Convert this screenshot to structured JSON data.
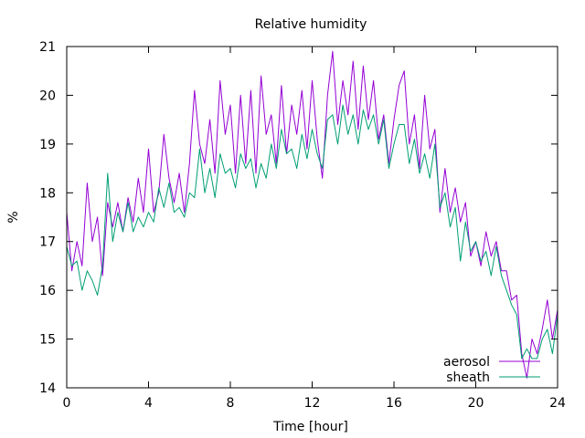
{
  "chart_data": {
    "type": "line",
    "title": "Relative humidity",
    "xlabel": "Time [hour]",
    "ylabel": "%",
    "xlim": [
      0,
      24
    ],
    "ylim": [
      14,
      21
    ],
    "xticks": [
      0,
      4,
      8,
      12,
      16,
      20,
      24
    ],
    "yticks": [
      14,
      15,
      16,
      17,
      18,
      19,
      20,
      21
    ],
    "grid": false,
    "legend_position": "bottom-right",
    "series": [
      {
        "name": "aerosol",
        "color": "#9400d3",
        "x": [
          0,
          0.25,
          0.5,
          0.75,
          1,
          1.25,
          1.5,
          1.75,
          2,
          2.25,
          2.5,
          2.75,
          3,
          3.25,
          3.5,
          3.75,
          4,
          4.25,
          4.5,
          4.75,
          5,
          5.25,
          5.5,
          5.75,
          6,
          6.25,
          6.5,
          6.75,
          7,
          7.25,
          7.5,
          7.75,
          8,
          8.25,
          8.5,
          8.75,
          9,
          9.25,
          9.5,
          9.75,
          10,
          10.25,
          10.5,
          10.75,
          11,
          11.25,
          11.5,
          11.75,
          12,
          12.25,
          12.5,
          12.75,
          13,
          13.25,
          13.5,
          13.75,
          14,
          14.25,
          14.5,
          14.75,
          15,
          15.25,
          15.5,
          15.75,
          16,
          16.25,
          16.5,
          16.75,
          17,
          17.25,
          17.5,
          17.75,
          18,
          18.25,
          18.5,
          18.75,
          19,
          19.25,
          19.5,
          19.75,
          20,
          20.25,
          20.5,
          20.75,
          21,
          21.25,
          21.5,
          21.75,
          22,
          22.25,
          22.5,
          22.75,
          23,
          23.25,
          23.5,
          23.75,
          24
        ],
        "values": [
          17.6,
          16.4,
          17.0,
          16.5,
          18.2,
          17.0,
          17.5,
          16.3,
          17.8,
          17.3,
          17.8,
          17.2,
          17.9,
          17.4,
          18.3,
          17.6,
          18.9,
          17.6,
          18.0,
          19.2,
          18.3,
          17.8,
          18.4,
          17.6,
          18.6,
          20.1,
          19.0,
          18.6,
          19.5,
          18.4,
          20.3,
          19.2,
          19.8,
          18.4,
          20.0,
          18.6,
          20.1,
          18.4,
          20.4,
          19.2,
          19.6,
          18.6,
          20.2,
          18.8,
          19.8,
          19.2,
          20.1,
          18.9,
          20.3,
          19.1,
          18.3,
          20.0,
          20.9,
          19.4,
          20.3,
          19.6,
          20.7,
          19.3,
          20.6,
          19.5,
          20.3,
          19.1,
          19.6,
          18.6,
          19.5,
          20.2,
          20.5,
          19.0,
          19.6,
          18.5,
          20.0,
          18.9,
          19.3,
          17.6,
          18.5,
          17.6,
          18.1,
          17.4,
          17.8,
          16.7,
          17.0,
          16.5,
          17.2,
          16.7,
          17.0,
          16.4,
          16.4,
          15.8,
          15.9,
          14.7,
          14.2,
          15.0,
          14.7,
          15.2,
          15.8,
          15.0,
          15.6
        ]
      },
      {
        "name": "sheath",
        "color": "#009e73",
        "x": [
          0,
          0.25,
          0.5,
          0.75,
          1,
          1.25,
          1.5,
          1.75,
          2,
          2.25,
          2.5,
          2.75,
          3,
          3.25,
          3.5,
          3.75,
          4,
          4.25,
          4.5,
          4.75,
          5,
          5.25,
          5.5,
          5.75,
          6,
          6.25,
          6.5,
          6.75,
          7,
          7.25,
          7.5,
          7.75,
          8,
          8.25,
          8.5,
          8.75,
          9,
          9.25,
          9.5,
          9.75,
          10,
          10.25,
          10.5,
          10.75,
          11,
          11.25,
          11.5,
          11.75,
          12,
          12.25,
          12.5,
          12.75,
          13,
          13.25,
          13.5,
          13.75,
          14,
          14.25,
          14.5,
          14.75,
          15,
          15.25,
          15.5,
          15.75,
          16,
          16.25,
          16.5,
          16.75,
          17,
          17.25,
          17.5,
          17.75,
          18,
          18.25,
          18.5,
          18.75,
          19,
          19.25,
          19.5,
          19.75,
          20,
          20.25,
          20.5,
          20.75,
          21,
          21.25,
          21.5,
          21.75,
          22,
          22.25,
          22.5,
          22.75,
          23,
          23.25,
          23.5,
          23.75,
          24
        ],
        "values": [
          16.9,
          16.5,
          16.6,
          16.0,
          16.4,
          16.2,
          15.9,
          16.5,
          18.4,
          17.0,
          17.6,
          17.2,
          17.8,
          17.2,
          17.5,
          17.3,
          17.6,
          17.4,
          18.1,
          17.7,
          18.2,
          17.6,
          17.7,
          17.5,
          18.0,
          17.9,
          18.9,
          18.0,
          18.5,
          17.9,
          18.8,
          18.4,
          18.5,
          18.1,
          18.8,
          18.5,
          18.7,
          18.1,
          18.6,
          18.3,
          19.0,
          18.5,
          19.3,
          18.8,
          18.9,
          18.5,
          19.2,
          18.7,
          19.3,
          18.8,
          18.5,
          19.5,
          19.6,
          19.0,
          19.8,
          19.2,
          19.6,
          19.0,
          19.7,
          19.3,
          19.6,
          19.0,
          19.5,
          18.5,
          19.0,
          19.4,
          19.4,
          18.6,
          19.1,
          18.4,
          18.8,
          18.3,
          19.0,
          17.7,
          18.0,
          17.3,
          17.7,
          16.6,
          17.4,
          16.8,
          17.0,
          16.6,
          16.8,
          16.3,
          16.9,
          16.3,
          16.0,
          15.7,
          15.5,
          14.6,
          14.8,
          14.6,
          14.6,
          15.0,
          15.2,
          14.7,
          15.5
        ]
      }
    ]
  }
}
